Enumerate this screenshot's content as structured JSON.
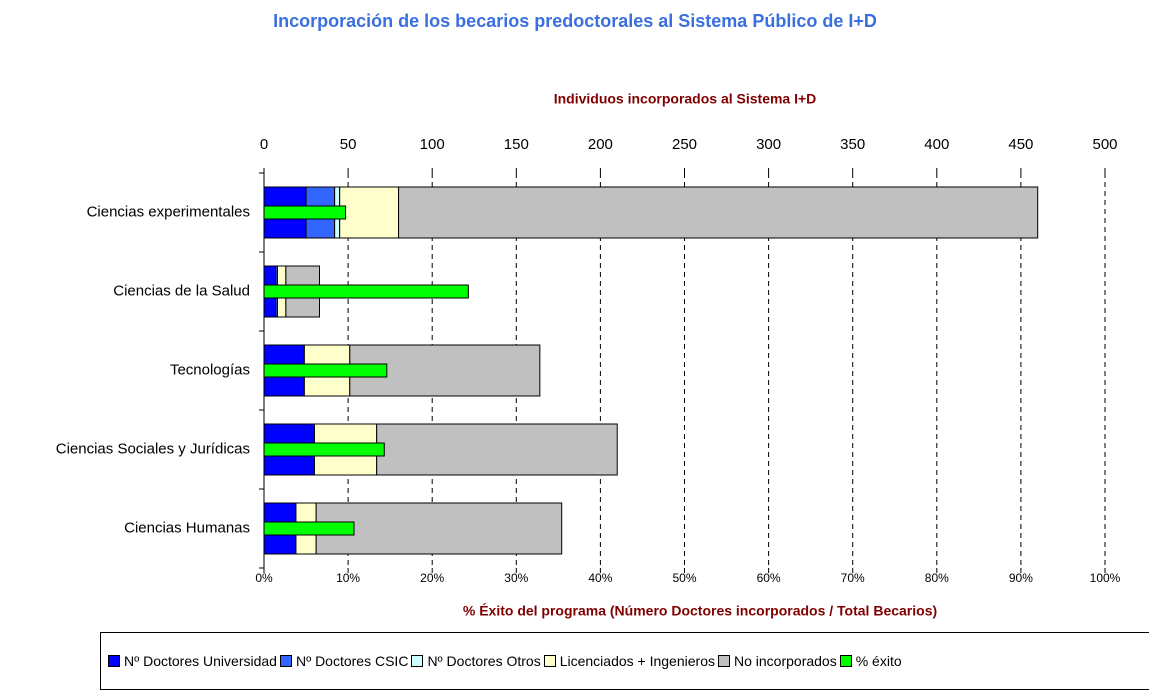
{
  "chart_data": {
    "type": "bar",
    "orientation": "horizontal",
    "stacked": true,
    "title": "Incorporación de los becarios predoctorales al Sistema Público de I+D",
    "xlabel": "Individuos incorporados al Sistema I+D",
    "x2label": "% Éxito del programa (Número Doctores incorporados / Total Becarios)",
    "categories": [
      "Ciencias experimentales",
      "Ciencias de la Salud",
      "Tecnologías",
      "Ciencias Sociales y Jurídicas",
      "Ciencias Humanas"
    ],
    "xlim": [
      0,
      500
    ],
    "xticks": [
      0,
      50,
      100,
      150,
      200,
      250,
      300,
      350,
      400,
      450,
      500
    ],
    "x2lim": [
      0,
      100
    ],
    "x2ticks": [
      {
        "value": 0,
        "label": "0%"
      },
      {
        "value": 10,
        "label": "10%"
      },
      {
        "value": 20,
        "label": "20%"
      },
      {
        "value": 30,
        "label": "30%"
      },
      {
        "value": 40,
        "label": "40%"
      },
      {
        "value": 50,
        "label": "50%"
      },
      {
        "value": 60,
        "label": "60%"
      },
      {
        "value": 70,
        "label": "70%"
      },
      {
        "value": 80,
        "label": "80%"
      },
      {
        "value": 90,
        "label": "90%"
      },
      {
        "value": 100,
        "label": "100%"
      }
    ],
    "grid": true,
    "series": [
      {
        "name": "Nº Doctores Universidad",
        "color": "#0000ff",
        "values": [
          25,
          7,
          24,
          30,
          19
        ]
      },
      {
        "name": "Nº Doctores CSIC",
        "color": "#3366ff",
        "values": [
          17,
          1,
          0,
          0,
          0
        ]
      },
      {
        "name": "Nº Doctores Otros",
        "color": "#ccffff",
        "values": [
          3,
          0,
          0,
          0,
          0
        ]
      },
      {
        "name": "Licenciados + Ingenieros",
        "color": "#ffffcc",
        "values": [
          35,
          5,
          27,
          37,
          12
        ]
      },
      {
        "name": "No incorporados",
        "color": "#c0c0c0",
        "values": [
          380,
          20,
          113,
          143,
          146
        ]
      },
      {
        "name": "% éxito",
        "color": "#00ff00",
        "axis": "x2",
        "values": [
          9.7,
          24.3,
          14.6,
          14.3,
          10.7
        ]
      }
    ]
  }
}
